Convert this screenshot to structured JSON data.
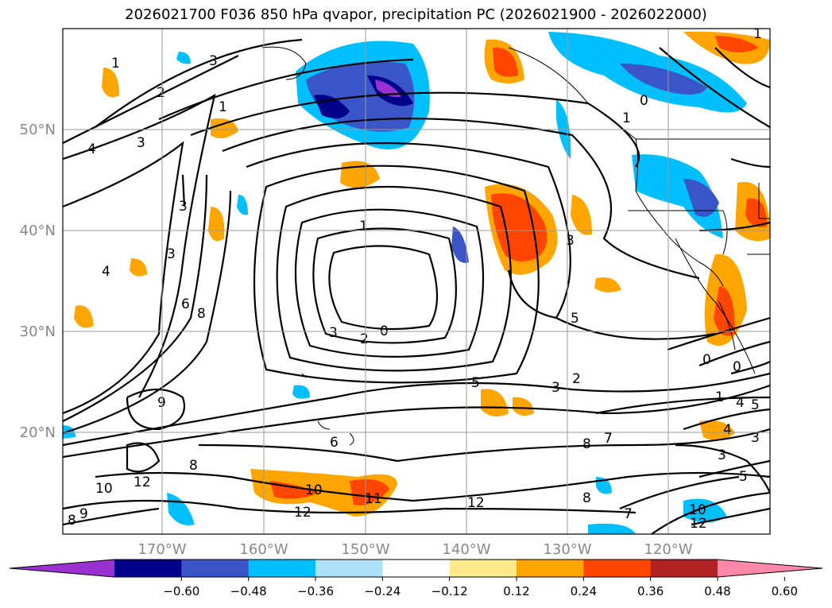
{
  "title": "2026021700 F036 850 hPa qvapor, precipitation PC (2026021900 - 2026022000)",
  "lat_labels": [
    "50°N",
    "40°N",
    "30°N",
    "20°N"
  ],
  "lon_labels": [
    "170°W",
    "160°W",
    "150°W",
    "140°W",
    "130°W",
    "120°W"
  ],
  "colorbar": {
    "colors": [
      "#9b30d0",
      "#00008b",
      "#3a55c8",
      "#00bfff",
      "#aee0f8",
      "#ffffff",
      "#fbe98a",
      "#ffa500",
      "#ff4500",
      "#b22222",
      "#ff88aa"
    ],
    "tick_labels": [
      "−0.60",
      "−0.48",
      "−0.36",
      "−0.24",
      "−0.12",
      "0.12",
      "0.24",
      "0.36",
      "0.48",
      "0.60"
    ]
  },
  "contour_labels": [
    "1",
    "3",
    "2",
    "1",
    "4",
    "3",
    "3",
    "3",
    "4",
    "6",
    "8",
    "9",
    "8",
    "12",
    "10",
    "8",
    "9",
    "1",
    "0",
    "2",
    "3",
    "5",
    "2",
    "3",
    "5",
    "6",
    "10",
    "11",
    "12",
    "8",
    "7",
    "12",
    "8",
    "7",
    "10",
    "12",
    "3",
    "1",
    "0",
    "1",
    "0",
    "0",
    "1",
    "4",
    "5",
    "4",
    "3",
    "3",
    "5"
  ]
}
